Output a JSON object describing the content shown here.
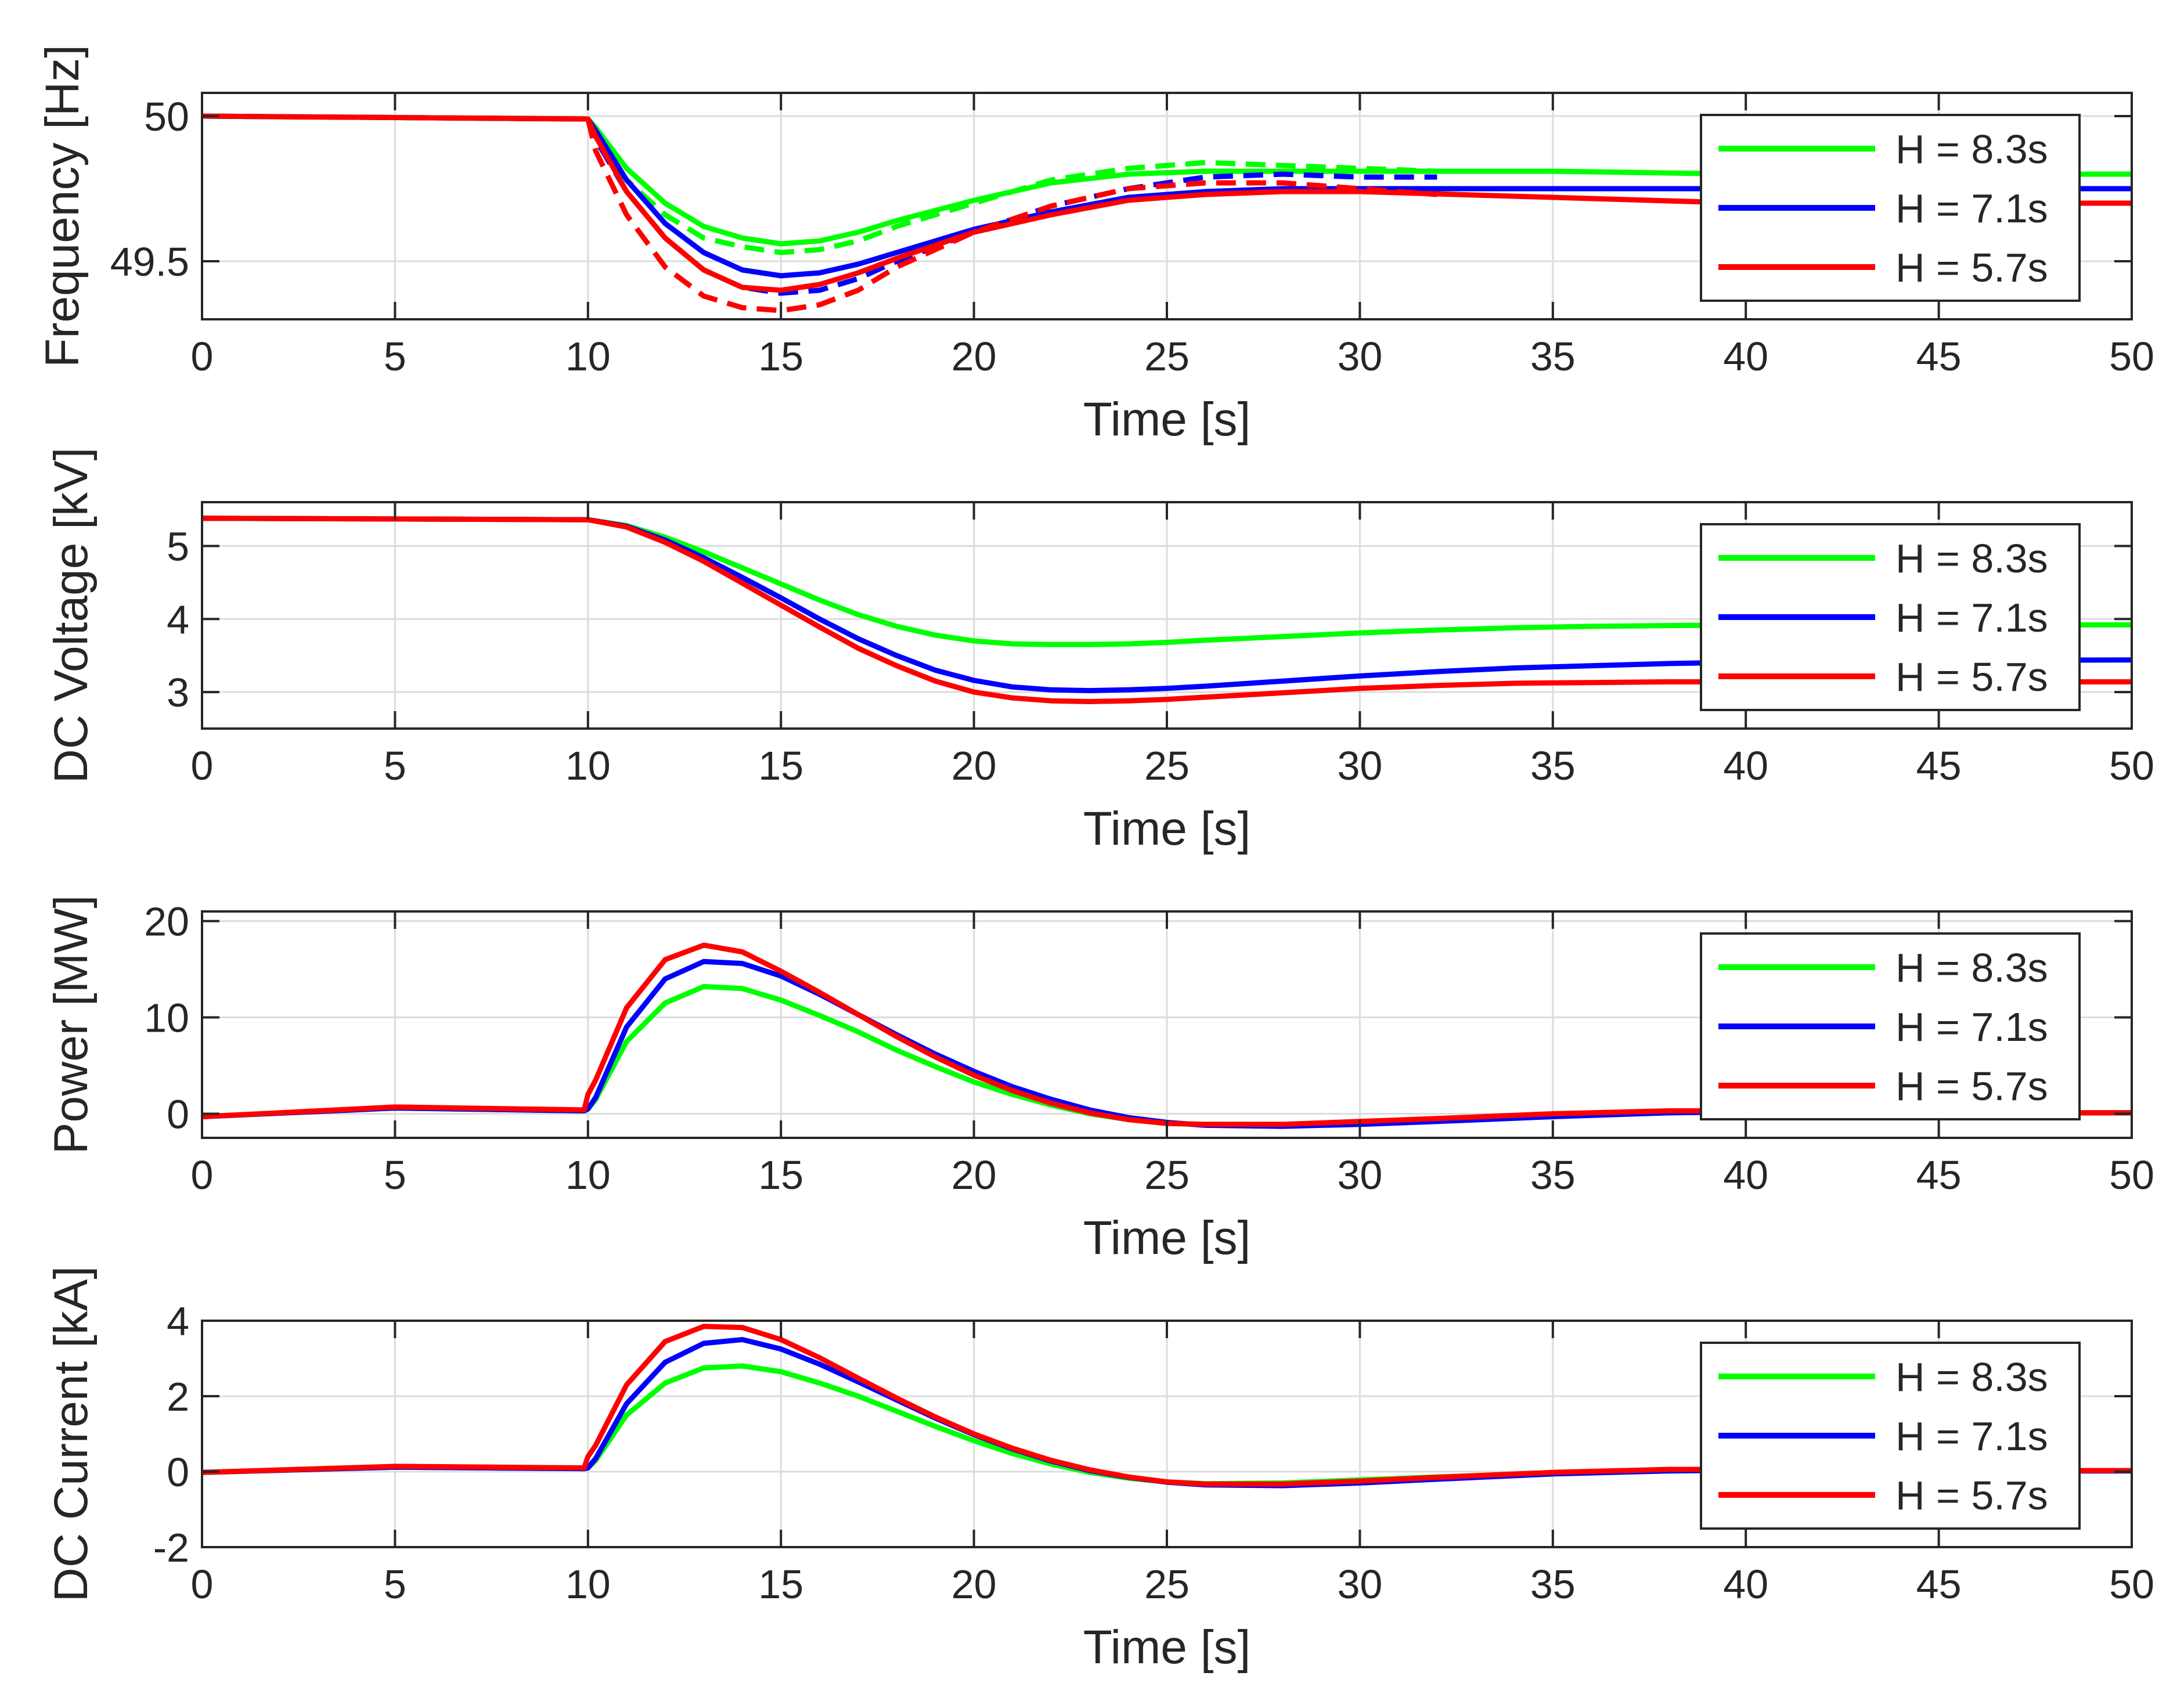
{
  "colors": {
    "h83": "#00ff00",
    "h71": "#0000ff",
    "h57": "#ff0000",
    "grid": "#dcdcdc",
    "axis": "#262626"
  },
  "chart_data": [
    {
      "type": "line",
      "ylabel": "Frequency [Hz]",
      "xlabel": "Time [s]",
      "xlim": [
        0,
        50
      ],
      "ylim": [
        49.3,
        50.08
      ],
      "xticks": [
        "0",
        "5",
        "10",
        "15",
        "20",
        "25",
        "30",
        "35",
        "40",
        "45",
        "50"
      ],
      "yticks": [
        {
          "value": 50,
          "label": "50"
        },
        {
          "value": 49.5,
          "label": "49.5"
        }
      ],
      "legend": [
        "H = 8.3s",
        "H = 7.1s",
        "H = 5.7s"
      ],
      "series": [
        {
          "name": "H = 8.3s",
          "color": "#00ff00",
          "style": "solid",
          "x": [
            0,
            10,
            10.2,
            11,
            12,
            13,
            14,
            15,
            16,
            17,
            18,
            20,
            22,
            24,
            26,
            28,
            30,
            35,
            40,
            45,
            50
          ],
          "y": [
            50.0,
            49.99,
            49.96,
            49.82,
            49.7,
            49.62,
            49.58,
            49.56,
            49.57,
            49.6,
            49.64,
            49.71,
            49.77,
            49.8,
            49.81,
            49.81,
            49.81,
            49.81,
            49.8,
            49.8,
            49.8
          ]
        },
        {
          "name": "H = 8.3s dashed",
          "color": "#00ff00",
          "style": "dashed",
          "x": [
            10,
            10.2,
            11,
            12,
            13,
            14,
            15,
            16,
            17,
            18,
            20,
            22,
            24,
            26,
            28,
            30,
            32
          ],
          "y": [
            49.99,
            49.93,
            49.78,
            49.66,
            49.58,
            49.55,
            49.53,
            49.54,
            49.57,
            49.62,
            49.7,
            49.78,
            49.82,
            49.84,
            49.83,
            49.82,
            49.81
          ]
        },
        {
          "name": "H = 7.1s",
          "color": "#0000ff",
          "style": "solid",
          "x": [
            0,
            10,
            10.2,
            11,
            12,
            13,
            14,
            15,
            16,
            17,
            18,
            20,
            22,
            24,
            26,
            28,
            30,
            35,
            40,
            45,
            50
          ],
          "y": [
            50.0,
            49.99,
            49.95,
            49.78,
            49.63,
            49.53,
            49.47,
            49.45,
            49.46,
            49.49,
            49.53,
            49.61,
            49.67,
            49.72,
            49.74,
            49.75,
            49.75,
            49.75,
            49.75,
            49.75,
            49.75
          ]
        },
        {
          "name": "H = 7.1s dashed",
          "color": "#0000ff",
          "style": "dashed",
          "x": [
            10,
            10.2,
            11,
            12,
            13,
            14,
            15,
            16,
            17,
            18,
            20,
            22,
            24,
            26,
            28,
            30,
            32
          ],
          "y": [
            49.99,
            49.92,
            49.74,
            49.58,
            49.47,
            49.41,
            49.39,
            49.4,
            49.44,
            49.5,
            49.6,
            49.69,
            49.75,
            49.79,
            49.8,
            49.79,
            49.79
          ]
        },
        {
          "name": "H = 5.7s",
          "color": "#ff0000",
          "style": "solid",
          "x": [
            0,
            10,
            10.2,
            11,
            12,
            13,
            14,
            15,
            16,
            17,
            18,
            20,
            22,
            24,
            26,
            28,
            30,
            35,
            40,
            45,
            50
          ],
          "y": [
            50.0,
            49.99,
            49.93,
            49.74,
            49.58,
            49.47,
            49.41,
            49.4,
            49.42,
            49.46,
            49.51,
            49.6,
            49.66,
            49.71,
            49.73,
            49.74,
            49.74,
            49.72,
            49.7,
            49.7,
            49.7
          ]
        },
        {
          "name": "H = 5.7s dashed",
          "color": "#ff0000",
          "style": "dashed",
          "x": [
            10,
            10.2,
            11,
            12,
            13,
            14,
            15,
            16,
            17,
            18,
            20,
            22,
            24,
            26,
            28,
            30,
            32
          ],
          "y": [
            49.99,
            49.88,
            49.66,
            49.48,
            49.38,
            49.34,
            49.33,
            49.35,
            49.4,
            49.48,
            49.6,
            49.69,
            49.75,
            49.77,
            49.77,
            49.75,
            49.73
          ]
        }
      ]
    },
    {
      "type": "line",
      "ylabel": "DC Voltage [kV]",
      "xlabel": "Time [s]",
      "xlim": [
        0,
        50
      ],
      "ylim": [
        2.5,
        5.6
      ],
      "xticks": [
        "0",
        "5",
        "10",
        "15",
        "20",
        "25",
        "30",
        "35",
        "40",
        "45",
        "50"
      ],
      "yticks": [
        {
          "value": 5,
          "label": "5"
        },
        {
          "value": 4,
          "label": "4"
        },
        {
          "value": 3,
          "label": "3"
        }
      ],
      "legend": [
        "H = 8.3s",
        "H = 7.1s",
        "H = 5.7s"
      ],
      "series": [
        {
          "name": "H = 8.3s",
          "color": "#00ff00",
          "style": "solid",
          "x": [
            0,
            10,
            11,
            12,
            13,
            14,
            15,
            16,
            17,
            18,
            19,
            20,
            21,
            22,
            23,
            24,
            25,
            26,
            28,
            30,
            32,
            34,
            36,
            38,
            40,
            45,
            50
          ],
          "y": [
            5.38,
            5.36,
            5.28,
            5.12,
            4.92,
            4.7,
            4.48,
            4.26,
            4.06,
            3.9,
            3.78,
            3.7,
            3.66,
            3.65,
            3.65,
            3.66,
            3.68,
            3.71,
            3.76,
            3.81,
            3.85,
            3.88,
            3.9,
            3.91,
            3.92,
            3.92,
            3.92
          ]
        },
        {
          "name": "H = 7.1s",
          "color": "#0000ff",
          "style": "solid",
          "x": [
            0,
            10,
            11,
            12,
            13,
            14,
            15,
            16,
            17,
            18,
            19,
            20,
            21,
            22,
            23,
            24,
            25,
            26,
            28,
            30,
            32,
            34,
            36,
            38,
            40,
            45,
            50
          ],
          "y": [
            5.38,
            5.36,
            5.27,
            5.08,
            4.84,
            4.57,
            4.29,
            4.0,
            3.73,
            3.5,
            3.3,
            3.16,
            3.07,
            3.03,
            3.02,
            3.03,
            3.05,
            3.08,
            3.15,
            3.22,
            3.28,
            3.33,
            3.36,
            3.39,
            3.41,
            3.43,
            3.44
          ]
        },
        {
          "name": "H = 5.7s",
          "color": "#ff0000",
          "style": "solid",
          "x": [
            0,
            10,
            11,
            12,
            13,
            14,
            15,
            16,
            17,
            18,
            19,
            20,
            21,
            22,
            23,
            24,
            25,
            26,
            28,
            30,
            32,
            34,
            36,
            38,
            40,
            45,
            50
          ],
          "y": [
            5.38,
            5.36,
            5.26,
            5.05,
            4.79,
            4.49,
            4.19,
            3.89,
            3.6,
            3.36,
            3.15,
            3.0,
            2.92,
            2.88,
            2.87,
            2.88,
            2.9,
            2.93,
            2.99,
            3.05,
            3.09,
            3.12,
            3.13,
            3.14,
            3.14,
            3.14,
            3.14
          ]
        }
      ]
    },
    {
      "type": "line",
      "ylabel": "Power [MW]",
      "xlabel": "Time [s]",
      "xlim": [
        0,
        50
      ],
      "ylim": [
        -2.5,
        21
      ],
      "xticks": [
        "0",
        "5",
        "10",
        "15",
        "20",
        "25",
        "30",
        "35",
        "40",
        "45",
        "50"
      ],
      "yticks": [
        {
          "value": 20,
          "label": "20"
        },
        {
          "value": 10,
          "label": "10"
        },
        {
          "value": 0,
          "label": "0"
        }
      ],
      "legend": [
        "H = 8.3s",
        "H = 7.1s",
        "H = 5.7s"
      ],
      "series": [
        {
          "name": "H = 8.3s",
          "color": "#00ff00",
          "style": "solid",
          "x": [
            0,
            5,
            9.9,
            10,
            10.2,
            11,
            12,
            13,
            14,
            15,
            16,
            17,
            18,
            19,
            20,
            21,
            22,
            23,
            24,
            25,
            26,
            28,
            30,
            32,
            35,
            38,
            40,
            45,
            50
          ],
          "y": [
            -0.3,
            0.6,
            0.3,
            0.5,
            1.5,
            7.5,
            11.5,
            13.2,
            13.0,
            11.8,
            10.2,
            8.5,
            6.6,
            4.9,
            3.3,
            2.0,
            0.9,
            0.0,
            -0.6,
            -1.0,
            -1.1,
            -1.1,
            -0.9,
            -0.6,
            -0.2,
            0.1,
            0.2,
            0.1,
            0.1
          ]
        },
        {
          "name": "H = 7.1s",
          "color": "#0000ff",
          "style": "solid",
          "x": [
            0,
            5,
            9.9,
            10,
            10.2,
            11,
            12,
            13,
            14,
            15,
            16,
            17,
            18,
            19,
            20,
            21,
            22,
            23,
            24,
            25,
            26,
            28,
            30,
            32,
            35,
            38,
            40,
            45,
            50
          ],
          "y": [
            -0.3,
            0.6,
            0.3,
            0.5,
            1.7,
            9.0,
            14.0,
            15.8,
            15.6,
            14.3,
            12.4,
            10.3,
            8.2,
            6.2,
            4.4,
            2.8,
            1.5,
            0.4,
            -0.4,
            -0.9,
            -1.2,
            -1.3,
            -1.1,
            -0.8,
            -0.3,
            0.1,
            0.2,
            0.1,
            0.1
          ]
        },
        {
          "name": "H = 5.7s",
          "color": "#ff0000",
          "style": "solid",
          "x": [
            0,
            5,
            9.9,
            10,
            10.2,
            11,
            12,
            13,
            14,
            15,
            16,
            17,
            18,
            19,
            20,
            21,
            22,
            23,
            24,
            25,
            26,
            28,
            30,
            32,
            35,
            38,
            40,
            45,
            50
          ],
          "y": [
            -0.3,
            0.7,
            0.4,
            2.0,
            3.5,
            11.0,
            16.0,
            17.5,
            16.8,
            14.8,
            12.6,
            10.3,
            8.0,
            5.9,
            4.0,
            2.4,
            1.1,
            0.1,
            -0.6,
            -1.0,
            -1.1,
            -1.1,
            -0.8,
            -0.5,
            0.0,
            0.3,
            0.3,
            0.1,
            0.1
          ]
        }
      ]
    },
    {
      "type": "line",
      "ylabel": "DC Current [kA]",
      "xlabel": "Time [s]",
      "xlim": [
        0,
        50
      ],
      "ylim": [
        -2,
        4
      ],
      "xticks": [
        "0",
        "5",
        "10",
        "15",
        "20",
        "25",
        "30",
        "35",
        "40",
        "45",
        "50"
      ],
      "yticks": [
        {
          "value": 4,
          "label": "4"
        },
        {
          "value": 2,
          "label": "2"
        },
        {
          "value": 0,
          "label": "0"
        },
        {
          "value": -2,
          "label": "-2"
        }
      ],
      "legend": [
        "H = 8.3s",
        "H = 7.1s",
        "H = 5.7s"
      ],
      "series": [
        {
          "name": "H = 8.3s",
          "color": "#00ff00",
          "style": "solid",
          "x": [
            0,
            5,
            9.9,
            10,
            10.2,
            11,
            12,
            13,
            14,
            15,
            16,
            17,
            18,
            19,
            20,
            21,
            22,
            23,
            24,
            25,
            26,
            28,
            30,
            32,
            35,
            38,
            40,
            45,
            50
          ],
          "y": [
            -0.02,
            0.12,
            0.08,
            0.1,
            0.3,
            1.5,
            2.35,
            2.75,
            2.8,
            2.65,
            2.35,
            2.0,
            1.6,
            1.2,
            0.82,
            0.48,
            0.2,
            -0.02,
            -0.17,
            -0.27,
            -0.32,
            -0.3,
            -0.22,
            -0.14,
            -0.04,
            0.02,
            0.04,
            0.02,
            0.02
          ]
        },
        {
          "name": "H = 7.1s",
          "color": "#0000ff",
          "style": "solid",
          "x": [
            0,
            5,
            9.9,
            10,
            10.2,
            11,
            12,
            13,
            14,
            15,
            16,
            17,
            18,
            19,
            20,
            21,
            22,
            23,
            24,
            25,
            26,
            28,
            30,
            32,
            35,
            38,
            40,
            45,
            50
          ],
          "y": [
            -0.02,
            0.12,
            0.08,
            0.1,
            0.35,
            1.8,
            2.9,
            3.4,
            3.5,
            3.25,
            2.85,
            2.38,
            1.9,
            1.42,
            0.98,
            0.6,
            0.28,
            0.03,
            -0.15,
            -0.28,
            -0.35,
            -0.37,
            -0.3,
            -0.2,
            -0.06,
            0.02,
            0.04,
            0.02,
            0.02
          ]
        },
        {
          "name": "H = 5.7s",
          "color": "#ff0000",
          "style": "solid",
          "x": [
            0,
            5,
            9.9,
            10,
            10.2,
            11,
            12,
            13,
            14,
            15,
            16,
            17,
            18,
            19,
            20,
            21,
            22,
            23,
            24,
            25,
            26,
            28,
            30,
            32,
            35,
            38,
            40,
            45,
            50
          ],
          "y": [
            -0.02,
            0.14,
            0.1,
            0.4,
            0.7,
            2.3,
            3.45,
            3.85,
            3.82,
            3.5,
            3.02,
            2.48,
            1.95,
            1.45,
            1.0,
            0.62,
            0.3,
            0.05,
            -0.14,
            -0.27,
            -0.33,
            -0.33,
            -0.25,
            -0.15,
            -0.02,
            0.06,
            0.06,
            0.03,
            0.03
          ]
        }
      ]
    }
  ]
}
